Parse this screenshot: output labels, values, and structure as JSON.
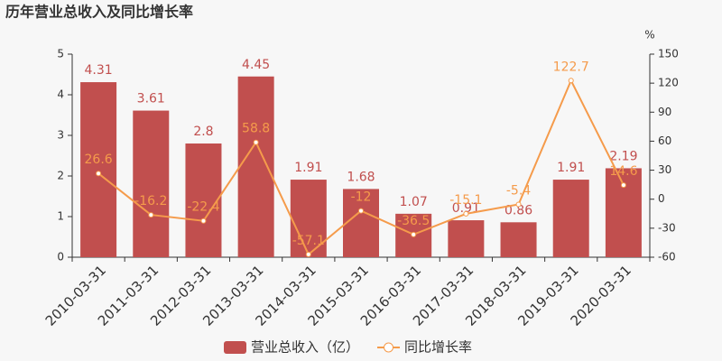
{
  "chart_data": {
    "type": "bar-line",
    "title": "历年营业总收入及同比增长率",
    "y2label": "%",
    "categories": [
      "2010-03-31",
      "2011-03-31",
      "2012-03-31",
      "2013-03-31",
      "2014-03-31",
      "2015-03-31",
      "2016-03-31",
      "2017-03-31",
      "2018-03-31",
      "2019-03-31",
      "2020-03-31"
    ],
    "series": [
      {
        "name": "营业总收入（亿）",
        "type": "bar",
        "color": "#c14f4e",
        "values": [
          4.31,
          3.61,
          2.8,
          4.45,
          1.91,
          1.68,
          1.07,
          0.91,
          0.86,
          1.91,
          2.19
        ]
      },
      {
        "name": "同比增长率",
        "type": "line",
        "axis": "y2",
        "color": "#f59b4b",
        "values": [
          26.6,
          -16.2,
          -22.4,
          58.8,
          -57.1,
          -12,
          -36.5,
          -15.1,
          -5.4,
          122.7,
          14.6
        ]
      }
    ],
    "ylim": [
      0,
      5
    ],
    "yticks": [
      0,
      1,
      2,
      3,
      4,
      5
    ],
    "y2lim": [
      -60,
      150
    ],
    "y2ticks": [
      -60,
      -30,
      0,
      30,
      60,
      90,
      120,
      150
    ],
    "legend": "bottom"
  }
}
